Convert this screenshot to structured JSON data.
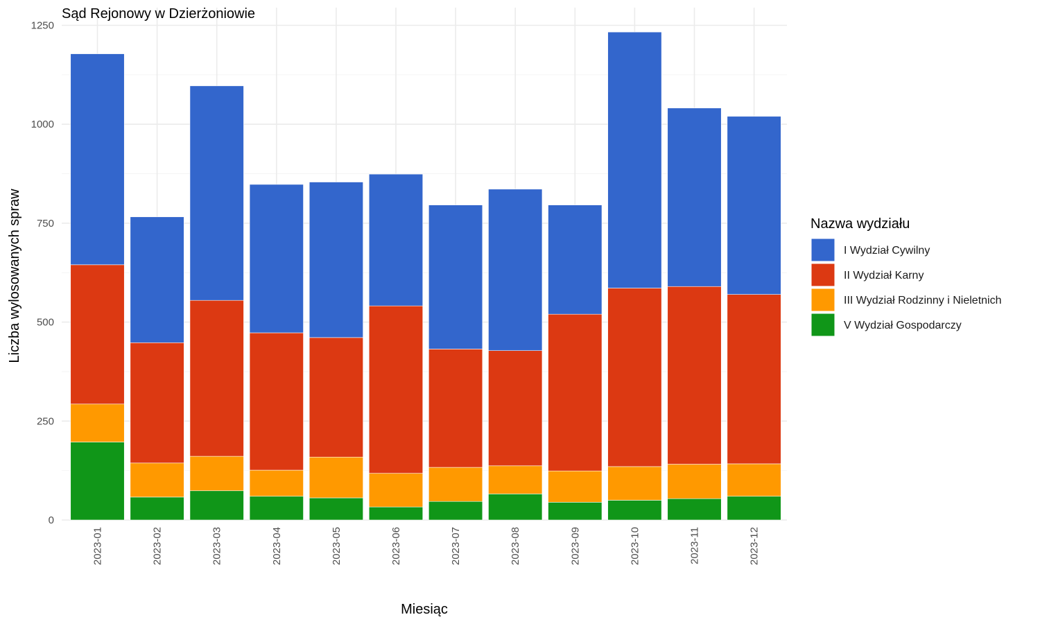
{
  "chart_data": {
    "type": "bar",
    "stacked": true,
    "title": "Sąd Rejonowy w Dzierżoniowie",
    "xlabel": "Miesiąc",
    "ylabel": "Liczba wylosowanych spraw",
    "ylim": [
      0,
      1250
    ],
    "yticks": [
      0,
      250,
      500,
      750,
      1000,
      1250
    ],
    "ytick_labels": [
      "0",
      "250",
      "500",
      "750",
      "1000",
      "1250"
    ],
    "grid": true,
    "legend_position": "right",
    "legend_title": "Nazwa wydziału",
    "categories": [
      "2023-01",
      "2023-02",
      "2023-03",
      "2023-04",
      "2023-05",
      "2023-06",
      "2023-07",
      "2023-08",
      "2023-09",
      "2023-10",
      "2023-11",
      "2023-12"
    ],
    "series": [
      {
        "name": "V Wydział Gospodarczy",
        "color": "#109618",
        "values": [
          197,
          58,
          74,
          60,
          56,
          33,
          47,
          66,
          45,
          50,
          54,
          60
        ]
      },
      {
        "name": "III Wydział Rodzinny i Nieletnich",
        "color": "#FF9900",
        "values": [
          96,
          86,
          87,
          66,
          103,
          85,
          86,
          71,
          79,
          85,
          87,
          82
        ]
      },
      {
        "name": "II Wydział Karny",
        "color": "#DC3912",
        "values": [
          352,
          304,
          394,
          347,
          302,
          423,
          299,
          291,
          396,
          451,
          449,
          428
        ]
      },
      {
        "name": "I Wydział Cywilny",
        "color": "#3366CC",
        "values": [
          533,
          318,
          542,
          375,
          393,
          333,
          364,
          408,
          276,
          647,
          451,
          450
        ]
      }
    ],
    "legend_order": [
      "I Wydział Cywilny",
      "II Wydział Karny",
      "III Wydział Rodzinny i Nieletnich",
      "V Wydział Gospodarczy"
    ]
  }
}
